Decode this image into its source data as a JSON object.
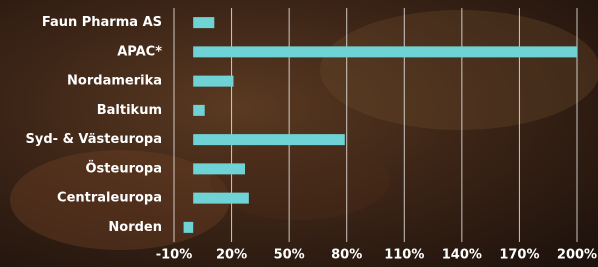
{
  "chart_data": {
    "type": "barh",
    "categories": [
      "Faun Pharma AS",
      "APAC*",
      "Nordamerika",
      "Baltikum",
      "Syd- & Västeuropa",
      "Östeuropa",
      "Centraleuropa",
      "Norden"
    ],
    "values": [
      11,
      200,
      21,
      6,
      79,
      27,
      29,
      -5
    ],
    "color": "#6fd3d6",
    "xlim": [
      -10,
      200
    ],
    "xticks": [
      {
        "value": -10,
        "label": "-10%"
      },
      {
        "value": 20,
        "label": "20%"
      },
      {
        "value": 50,
        "label": "50%"
      },
      {
        "value": 80,
        "label": "80%"
      },
      {
        "value": 110,
        "label": "110%"
      },
      {
        "value": 140,
        "label": "140%"
      },
      {
        "value": 170,
        "label": "170%"
      },
      {
        "value": 200,
        "label": "200%"
      }
    ],
    "grid": true
  }
}
